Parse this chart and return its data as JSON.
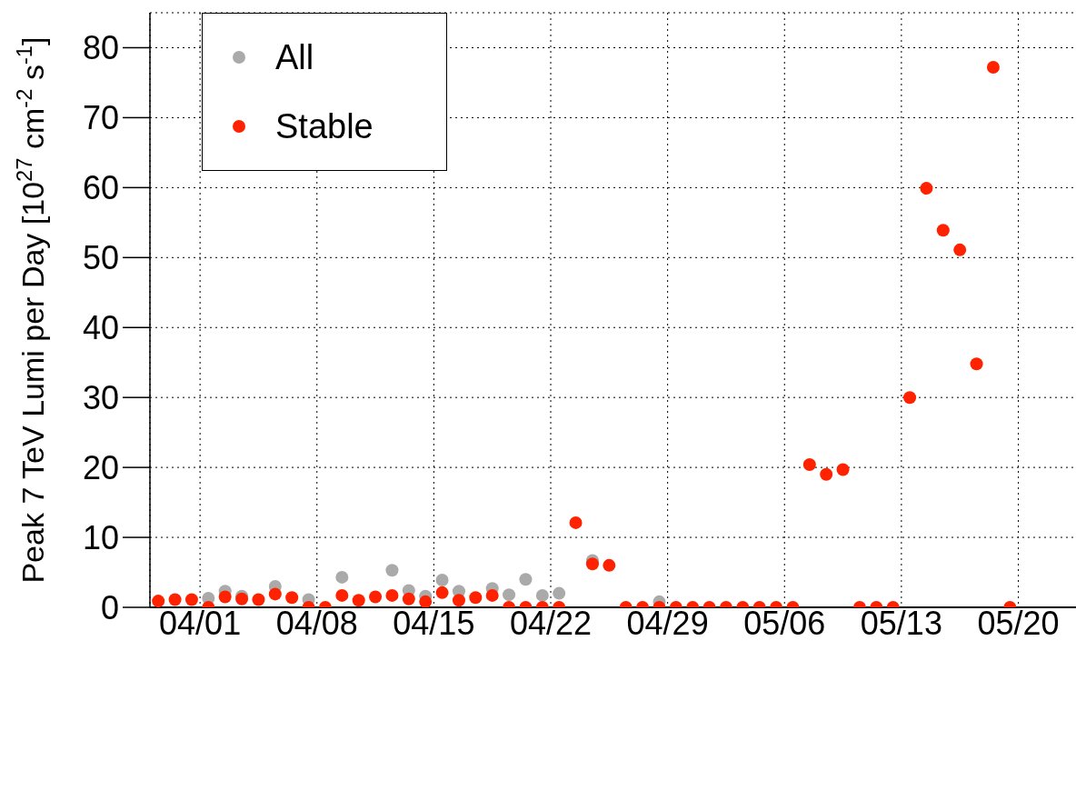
{
  "chart_data": {
    "type": "scatter",
    "ylabel": "Peak 7 TeV Lumi per Day [10$^{27}$ cm$^{-2}$ s$^{-1}$]",
    "xlim": [
      "--03-29",
      "--05-24"
    ],
    "xticks": [
      {
        "value": "--04-01",
        "label": "04/01"
      },
      {
        "value": "--04-08",
        "label": "04/08"
      },
      {
        "value": "--04-15",
        "label": "04/15"
      },
      {
        "value": "--04-22",
        "label": "04/22"
      },
      {
        "value": "--04-29",
        "label": "04/29"
      },
      {
        "value": "--05-06",
        "label": "05/06"
      },
      {
        "value": "--05-13",
        "label": "05/13"
      },
      {
        "value": "--05-20",
        "label": "05/20"
      }
    ],
    "ylim": [
      0,
      85
    ],
    "yticks": [
      0,
      10,
      20,
      30,
      40,
      50,
      60,
      70,
      80
    ],
    "grid": true,
    "legend": "top left",
    "marker": "circle",
    "series": [
      {
        "name": "All",
        "color": "#aaaaaa",
        "x": [
          "--04-01T12:00",
          "--04-02T12:00",
          "--04-03T12:00",
          "--04-05T12:00",
          "--04-07T12:00",
          "--04-09T12:00",
          "--04-12T12:00",
          "--04-13T12:00",
          "--04-14T12:00",
          "--04-15T12:00",
          "--04-16T12:00",
          "--04-18T12:00",
          "--04-19T12:00",
          "--04-20T12:00",
          "--04-21T12:00",
          "--04-22T12:00",
          "--04-24T12:00",
          "--04-28T12:00"
        ],
        "values": [
          1.3,
          2.3,
          1.6,
          3.0,
          1.1,
          4.3,
          5.3,
          2.4,
          1.6,
          3.9,
          2.3,
          2.7,
          1.8,
          4.0,
          1.7,
          2.0,
          6.7,
          0.8
        ]
      },
      {
        "name": "Stable",
        "color": "#ff2200",
        "x": [
          "--03-29T12:00",
          "--03-30T12:00",
          "--03-31T12:00",
          "--04-01T12:00",
          "--04-02T12:00",
          "--04-03T12:00",
          "--04-04T12:00",
          "--04-05T12:00",
          "--04-06T12:00",
          "--04-07T12:00",
          "--04-08T12:00",
          "--04-09T12:00",
          "--04-10T12:00",
          "--04-11T12:00",
          "--04-12T12:00",
          "--04-13T12:00",
          "--04-14T12:00",
          "--04-15T12:00",
          "--04-16T12:00",
          "--04-17T12:00",
          "--04-18T12:00",
          "--04-19T12:00",
          "--04-20T12:00",
          "--04-21T12:00",
          "--04-22T12:00",
          "--04-23T12:00",
          "--04-24T12:00",
          "--04-25T12:00",
          "--04-26T12:00",
          "--04-27T12:00",
          "--04-28T12:00",
          "--04-29T12:00",
          "--04-30T12:00",
          "--05-01T12:00",
          "--05-02T12:00",
          "--05-03T12:00",
          "--05-04T12:00",
          "--05-05T12:00",
          "--05-06T12:00",
          "--05-07T12:00",
          "--05-08T12:00",
          "--05-09T12:00",
          "--05-10T12:00",
          "--05-11T12:00",
          "--05-12T12:00",
          "--05-13T12:00",
          "--05-14T12:00",
          "--05-15T12:00",
          "--05-16T12:00",
          "--05-17T12:00",
          "--05-18T12:00",
          "--05-19T12:00"
        ],
        "values": [
          0.9,
          1.1,
          1.1,
          0,
          1.5,
          1.2,
          1.1,
          1.9,
          1.4,
          0,
          0,
          1.7,
          1.0,
          1.5,
          1.7,
          1.2,
          0.8,
          2.1,
          1.0,
          1.4,
          1.7,
          0,
          0,
          0,
          0,
          12.1,
          6.2,
          6.0,
          0,
          0,
          0,
          0,
          0,
          0,
          0,
          0,
          0,
          0,
          0,
          20.4,
          19.0,
          19.7,
          0,
          0,
          0,
          30.0,
          59.9,
          53.9,
          51.1,
          34.8,
          77.2,
          0
        ]
      }
    ]
  }
}
